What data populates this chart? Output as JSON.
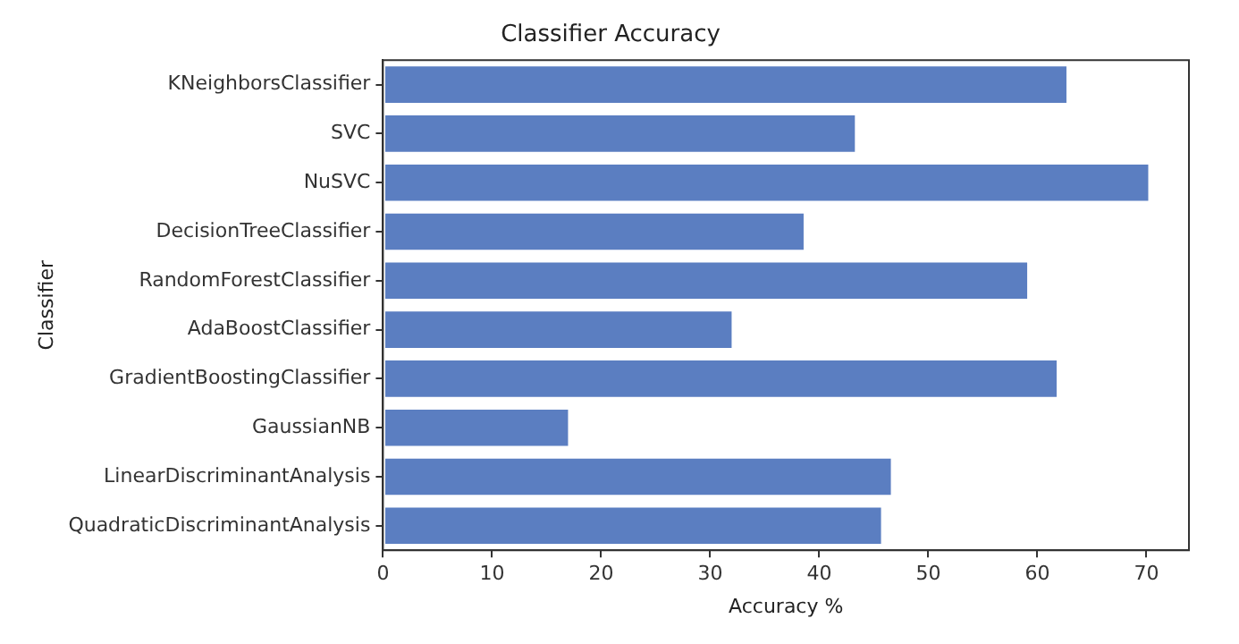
{
  "chart_data": {
    "type": "bar",
    "orientation": "horizontal",
    "title": "Classifier Accuracy",
    "xlabel": "Accuracy %",
    "ylabel": "Classifier",
    "categories": [
      "KNeighborsClassifier",
      "SVC",
      "NuSVC",
      "DecisionTreeClassifier",
      "RandomForestClassifier",
      "AdaBoostClassifier",
      "GradientBoostingClassifier",
      "GaussianNB",
      "LinearDiscriminantAnalysis",
      "QuadraticDiscriminantAnalysis"
    ],
    "values": [
      62.8,
      43.4,
      70.3,
      38.7,
      59.2,
      32.1,
      61.9,
      17.1,
      46.7,
      45.8
    ],
    "color": "#5b7ec1",
    "xlim": [
      0,
      73.9
    ],
    "xticks": [
      0,
      10,
      20,
      30,
      40,
      50,
      60,
      70
    ],
    "grid": false,
    "legend": false
  }
}
